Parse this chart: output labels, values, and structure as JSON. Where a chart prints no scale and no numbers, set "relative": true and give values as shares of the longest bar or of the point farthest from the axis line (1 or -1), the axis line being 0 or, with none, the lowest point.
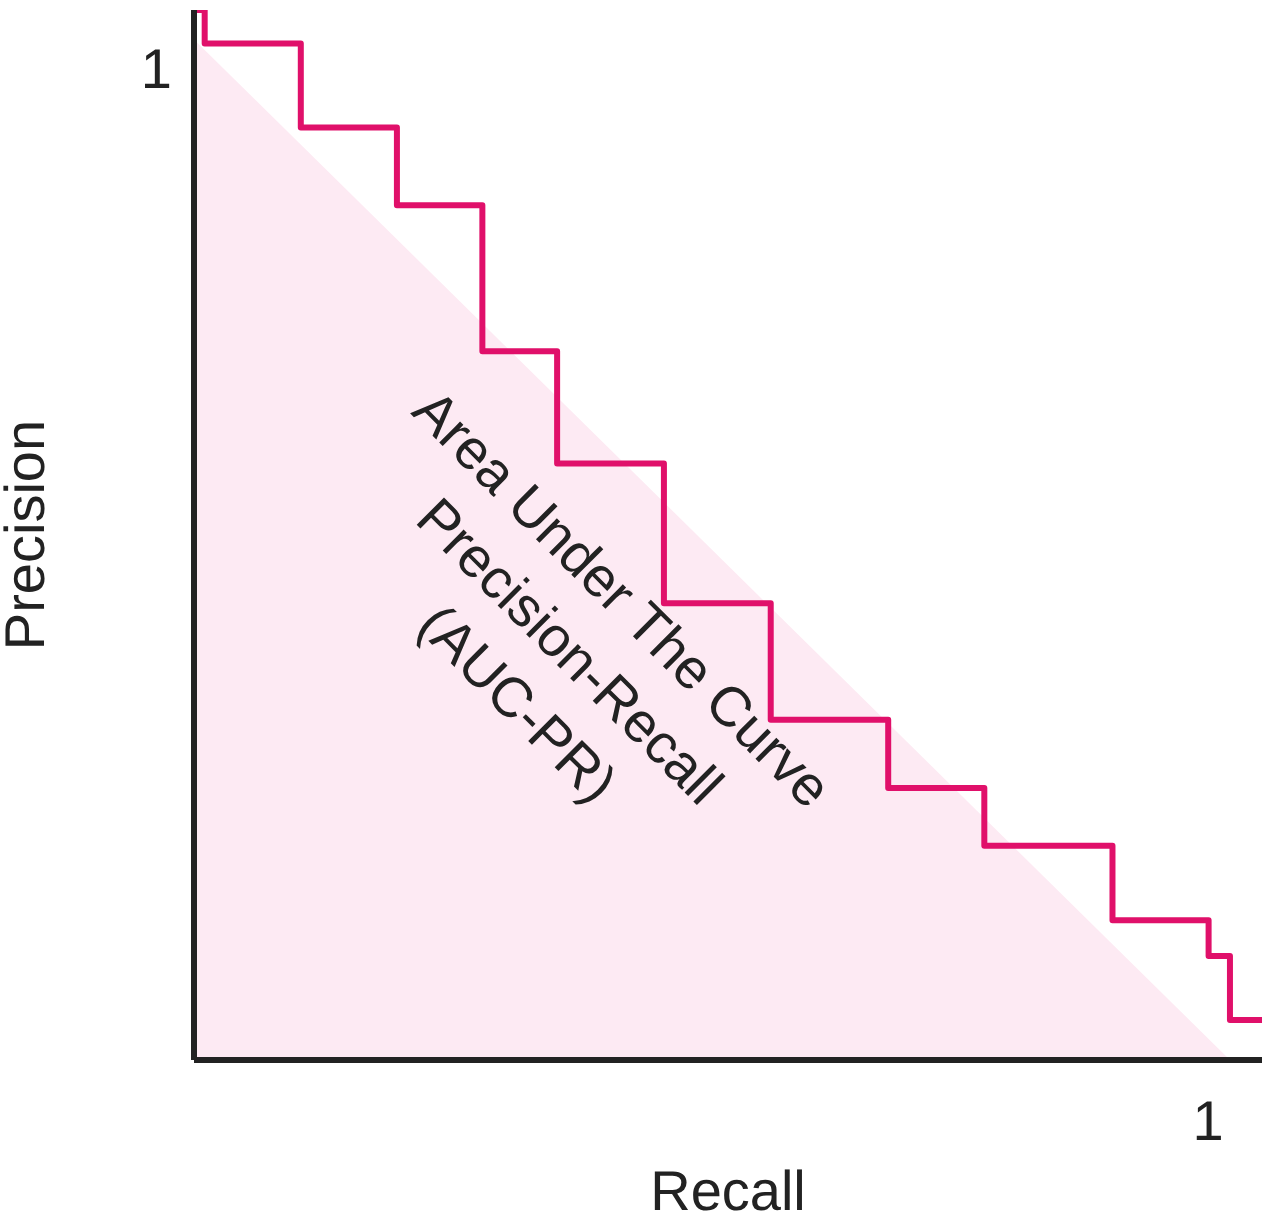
{
  "chart_data": {
    "type": "step",
    "relative": true,
    "xlabel": "Recall",
    "ylabel": "Precision",
    "annotations": [
      "1",
      "1",
      "Area Under The Curve\nPrecision-Recall\n(AUC-PR)"
    ],
    "categories": [
      null,
      null,
      null,
      null,
      null,
      null,
      null,
      null,
      null,
      null,
      null,
      null,
      null,
      null,
      null,
      null,
      null,
      null,
      null,
      null,
      null,
      null,
      null,
      null,
      null,
      null,
      null,
      null,
      null,
      null,
      null,
      null,
      null,
      null,
      null,
      null,
      null,
      null,
      null,
      null,
      null,
      null,
      null,
      null,
      null,
      null,
      null,
      null,
      null,
      null,
      null,
      null,
      null,
      null,
      null,
      null,
      null,
      null,
      null,
      null,
      null,
      null,
      null,
      null,
      null,
      null,
      null,
      null,
      null,
      null,
      null,
      null,
      null,
      null,
      null,
      null,
      null,
      null,
      null,
      null,
      null,
      null,
      null,
      null,
      null,
      null,
      null,
      null,
      null,
      null,
      null,
      null,
      null,
      null,
      null,
      null,
      null,
      null,
      null,
      null,
      null
    ],
    "series": [
      {
        "type": "area",
        "color": "#fdeaf3",
        "values": [
          0.972,
          null,
          null,
          null,
          null,
          null,
          null,
          null,
          null,
          null,
          null,
          null,
          null,
          null,
          null,
          null,
          null,
          null,
          null,
          null,
          null,
          null,
          null,
          null,
          null,
          null,
          null,
          null,
          null,
          null,
          null,
          null,
          null,
          null,
          null,
          null,
          null,
          null,
          null,
          null,
          null,
          null,
          null,
          null,
          null,
          null,
          null,
          null,
          null,
          null,
          null,
          null,
          null,
          null,
          null,
          null,
          null,
          null,
          null,
          null,
          null,
          null,
          null,
          null,
          null,
          null,
          null,
          null,
          null,
          null,
          null,
          null,
          null,
          null,
          null,
          null,
          null,
          null,
          null,
          null,
          null,
          null,
          null,
          null,
          null,
          null,
          null,
          null,
          null,
          null,
          null,
          null,
          null,
          null,
          null,
          null,
          null,
          0,
          null,
          null,
          null
        ]
      },
      {
        "color": "#e0106a",
        "values": [
          1,
          0.968,
          0.968,
          0.968,
          0.968,
          0.968,
          0.968,
          0.968,
          0.968,
          0.968,
          0.888,
          0.888,
          0.888,
          0.888,
          0.888,
          0.888,
          0.888,
          0.888,
          0.888,
          0.814,
          0.814,
          0.814,
          0.814,
          0.814,
          0.814,
          0.814,
          0.814,
          0.675,
          0.675,
          0.675,
          0.675,
          0.675,
          0.675,
          0.675,
          0.568,
          0.568,
          0.568,
          0.568,
          0.568,
          0.568,
          0.568,
          0.568,
          0.568,
          0.568,
          0.435,
          0.435,
          0.435,
          0.435,
          0.435,
          0.435,
          0.435,
          0.435,
          0.435,
          0.435,
          0.324,
          0.324,
          0.324,
          0.324,
          0.324,
          0.324,
          0.324,
          0.324,
          0.324,
          0.324,
          0.324,
          0.259,
          0.259,
          0.259,
          0.259,
          0.259,
          0.259,
          0.259,
          0.259,
          0.259,
          0.204,
          0.204,
          0.204,
          0.204,
          0.204,
          0.204,
          0.204,
          0.204,
          0.204,
          0.204,
          0.204,
          0.204,
          0.133,
          0.133,
          0.133,
          0.133,
          0.133,
          0.133,
          0.133,
          0.133,
          0.133,
          0.099,
          0.099,
          0.038,
          0.038,
          0.038,
          0.038
        ]
      }
    ]
  }
}
